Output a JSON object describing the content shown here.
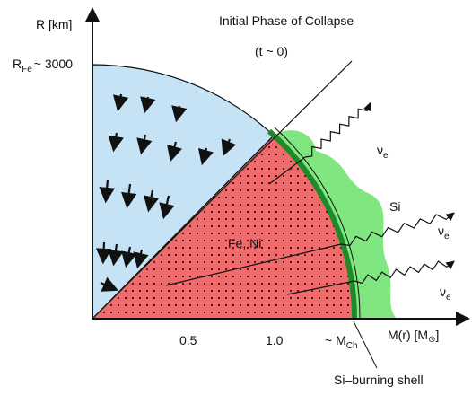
{
  "header": {
    "title": "Initial Phase of Collapse",
    "subtitle": "(t ~ 0)"
  },
  "axes": {
    "y_label": "R [km]",
    "r_fe": {
      "main": "R",
      "sub": "Fe",
      "rest": "~ 3000"
    },
    "x_label": {
      "main": "M(r) [M",
      "sub": "⊙",
      "rest": "]"
    },
    "x_ticks": [
      "0.5",
      "1.0"
    ],
    "m_ch": {
      "main": "~ M",
      "sub": "Ch"
    }
  },
  "regions": {
    "core": "Fe, Ni",
    "envelope": "Si",
    "shell": "Si–burning shell"
  },
  "neutrinos": [
    {
      "main": "ν",
      "sub": "e"
    },
    {
      "main": "ν",
      "sub": "e"
    },
    {
      "main": "ν",
      "sub": "e"
    }
  ]
}
